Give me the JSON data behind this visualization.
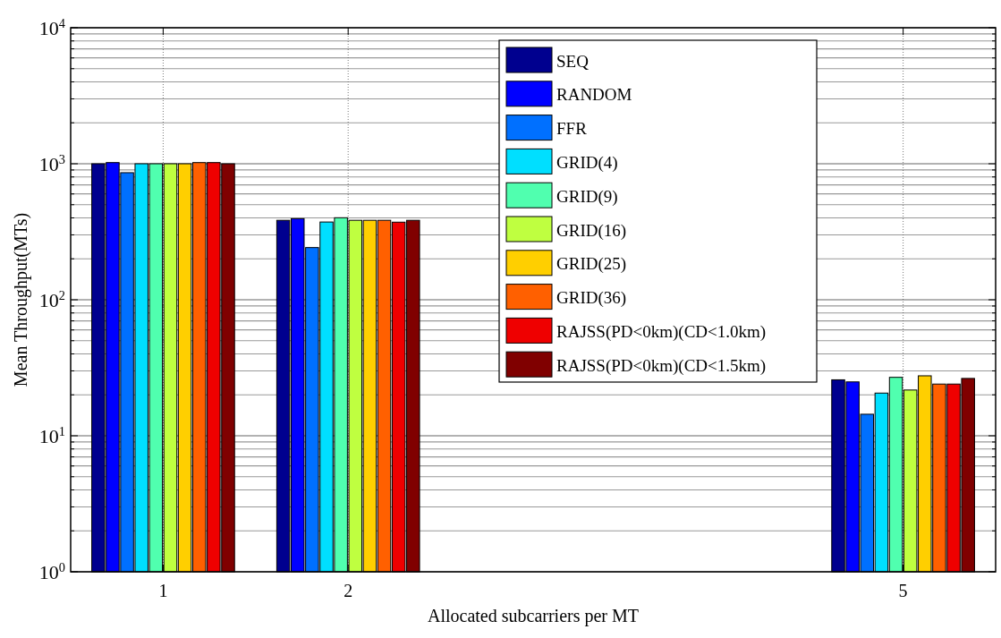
{
  "chart_data": {
    "type": "bar",
    "xlabel": "Allocated subcarriers per MT",
    "ylabel": "Mean Throughput(MTs)",
    "x": [
      1,
      2,
      5
    ],
    "xlim": [
      0.5,
      5.5
    ],
    "xticks": [
      1,
      2,
      5
    ],
    "ylim": [
      1,
      10000
    ],
    "log": true,
    "grid": true,
    "legend": "top right",
    "yticks": [
      {
        "value": 1,
        "label": "10$^{0}$"
      },
      {
        "value": 2,
        "label": null
      },
      {
        "value": 3,
        "label": null
      },
      {
        "value": 4,
        "label": null
      },
      {
        "value": 5,
        "label": null
      },
      {
        "value": 6,
        "label": null
      },
      {
        "value": 7,
        "label": null
      },
      {
        "value": 8,
        "label": null
      },
      {
        "value": 9,
        "label": null
      },
      {
        "value": 10,
        "label": "10$^{1}$"
      },
      {
        "value": 20,
        "label": null
      },
      {
        "value": 30,
        "label": null
      },
      {
        "value": 40,
        "label": null
      },
      {
        "value": 50,
        "label": null
      },
      {
        "value": 60,
        "label": null
      },
      {
        "value": 70,
        "label": null
      },
      {
        "value": 80,
        "label": null
      },
      {
        "value": 90,
        "label": null
      },
      {
        "value": 100,
        "label": "10$^{2}$"
      },
      {
        "value": 200,
        "label": null
      },
      {
        "value": 300,
        "label": null
      },
      {
        "value": 400,
        "label": null
      },
      {
        "value": 500,
        "label": null
      },
      {
        "value": 600,
        "label": null
      },
      {
        "value": 700,
        "label": null
      },
      {
        "value": 800,
        "label": null
      },
      {
        "value": 900,
        "label": null
      },
      {
        "value": 1000,
        "label": "10$^{3}$"
      },
      {
        "value": 2000,
        "label": null
      },
      {
        "value": 3000,
        "label": null
      },
      {
        "value": 4000,
        "label": null
      },
      {
        "value": 5000,
        "label": null
      },
      {
        "value": 6000,
        "label": null
      },
      {
        "value": 7000,
        "label": null
      },
      {
        "value": 8000,
        "label": null
      },
      {
        "value": 9000,
        "label": null
      },
      {
        "value": 10000,
        "label": "10$^{4}$"
      }
    ],
    "series": [
      {
        "name": "SEQ",
        "color": "#00008f",
        "values": [
          1000,
          384,
          25.8
        ]
      },
      {
        "name": "RANDOM",
        "color": "#0000ff",
        "values": [
          1020,
          395,
          24.9
        ]
      },
      {
        "name": "FFR",
        "color": "#0070ff",
        "values": [
          860,
          242,
          14.4
        ]
      },
      {
        "name": "GRID(4)",
        "color": "#00dfff",
        "values": [
          1000,
          373,
          20.6
        ]
      },
      {
        "name": "GRID(9)",
        "color": "#50ffaf",
        "values": [
          1000,
          401,
          26.9
        ]
      },
      {
        "name": "GRID(16)",
        "color": "#bfff40",
        "values": [
          1000,
          384,
          21.7
        ]
      },
      {
        "name": "GRID(25)",
        "color": "#ffcf00",
        "values": [
          1000,
          384,
          27.6
        ]
      },
      {
        "name": "GRID(36)",
        "color": "#ff6000",
        "values": [
          1020,
          384,
          24.0
        ]
      },
      {
        "name": "RAJSS(PD<0km)(CD<1.0km)",
        "color": "#ef0000",
        "values": [
          1020,
          372,
          24.0
        ]
      },
      {
        "name": "RAJSS(PD<0km)(CD<1.5km)",
        "color": "#800000",
        "values": [
          1000,
          384,
          26.4
        ]
      }
    ]
  }
}
